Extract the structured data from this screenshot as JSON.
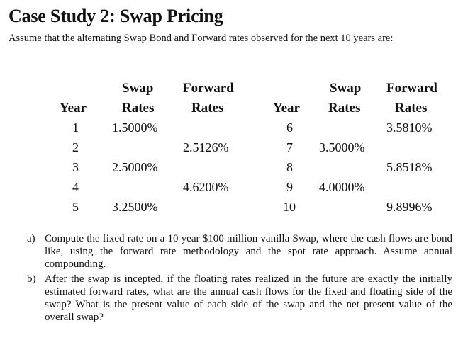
{
  "document": {
    "title": "Case Study 2: Swap Pricing",
    "subtitle": "Assume that the alternating Swap Bond and Forward rates observed for the next 10 years are:"
  },
  "table": {
    "left": {
      "header_year": "Year",
      "header_swap_1": "Swap",
      "header_swap_2": "Rates",
      "header_fwd_1": "Forward",
      "header_fwd_2": "Rates",
      "rows": [
        {
          "year": "1",
          "swap": "1.5000%",
          "forward": ""
        },
        {
          "year": "2",
          "swap": "",
          "forward": "2.5126%"
        },
        {
          "year": "3",
          "swap": "2.5000%",
          "forward": ""
        },
        {
          "year": "4",
          "swap": "",
          "forward": "4.6200%"
        },
        {
          "year": "5",
          "swap": "3.2500%",
          "forward": ""
        }
      ]
    },
    "right": {
      "header_year": "Year",
      "header_swap_1": "Swap",
      "header_swap_2": "Rates",
      "header_fwd_1": "Forward",
      "header_fwd_2": "Rates",
      "rows": [
        {
          "year": "6",
          "swap": "",
          "forward": "3.5810%"
        },
        {
          "year": "7",
          "swap": "3.5000%",
          "forward": ""
        },
        {
          "year": "8",
          "swap": "",
          "forward": "5.8518%"
        },
        {
          "year": "9",
          "swap": "4.0000%",
          "forward": ""
        },
        {
          "year": "10",
          "swap": "",
          "forward": "9.8996%"
        }
      ]
    }
  },
  "questions": [
    {
      "marker": "a)",
      "text": "Compute the fixed rate on a 10 year $100 million vanilla Swap, where the cash flows are bond like, using the forward rate methodology and the spot rate approach. Assume annual compounding."
    },
    {
      "marker": "b)",
      "text": "After the swap is incepted, if the floating rates realized in the future are exactly the initially estimated forward rates, what are the annual cash flows for the fixed and floating side of the swap? What is the present value of each side of the swap and the net present value of the overall swap?"
    }
  ]
}
